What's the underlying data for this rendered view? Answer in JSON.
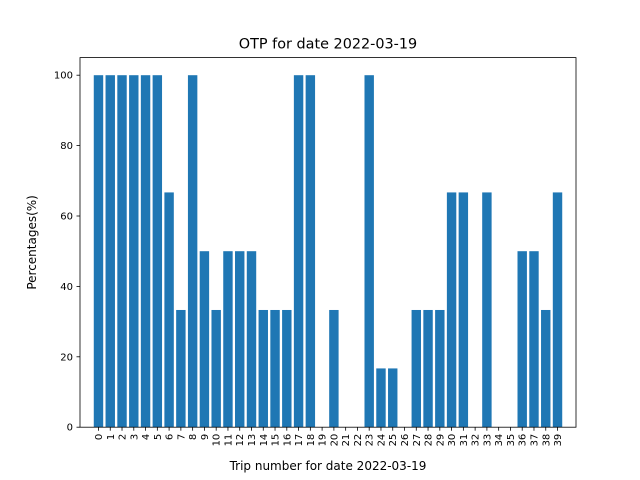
{
  "chart_data": {
    "type": "bar",
    "title": "OTP for date 2022-03-19",
    "xlabel": "Trip number for date 2022-03-19",
    "ylabel": "Percentages(%)",
    "categories": [
      "0",
      "1",
      "2",
      "3",
      "4",
      "5",
      "6",
      "7",
      "8",
      "9",
      "10",
      "11",
      "12",
      "13",
      "14",
      "15",
      "16",
      "17",
      "18",
      "19",
      "20",
      "21",
      "22",
      "23",
      "24",
      "25",
      "26",
      "27",
      "28",
      "29",
      "30",
      "31",
      "32",
      "33",
      "34",
      "35",
      "36",
      "37",
      "38",
      "39"
    ],
    "values": [
      100,
      100,
      100,
      100,
      100,
      100,
      66.7,
      33.3,
      100,
      50,
      33.3,
      50,
      50,
      50,
      33.3,
      33.3,
      33.3,
      100,
      100,
      0,
      33.3,
      0,
      0,
      100,
      16.7,
      16.7,
      0,
      33.3,
      33.3,
      33.3,
      66.7,
      66.7,
      0,
      66.7,
      0,
      0,
      50,
      50,
      33.3,
      66.7
    ],
    "yticks": [
      "0",
      "20",
      "40",
      "60",
      "80",
      "100"
    ],
    "ylim": [
      0,
      105
    ],
    "bar_color": "#1f77b4",
    "grid": false,
    "legend": "none"
  }
}
